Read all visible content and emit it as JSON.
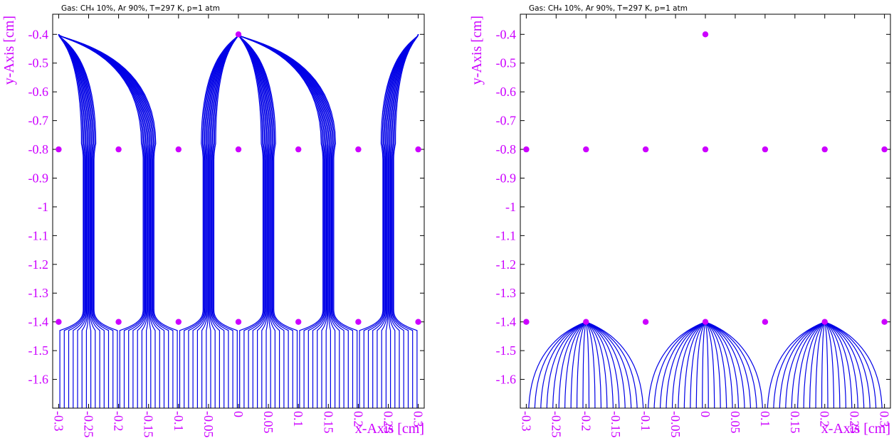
{
  "colors": {
    "field_lines": "#0000e6",
    "wires": "#cc00ff",
    "labels": "#cc00ff",
    "frame": "#000000"
  },
  "chart_data": [
    {
      "type": "line",
      "subtype": "drift-lines",
      "header": "Gas: CH₄ 10%, Ar 90%, T=297 K, p=1 atm",
      "xlabel": "x-Axis [cm]",
      "ylabel": "y-Axis [cm]",
      "xlim": [
        -0.31,
        0.31
      ],
      "ylim": [
        -1.7,
        -0.33
      ],
      "x_ticks": [
        "-0.3",
        "-0.25",
        "-0.2",
        "-0.15",
        "-0.1",
        "-0.05",
        "0",
        "0.05",
        "0.1",
        "0.15",
        "0.2",
        "0.25",
        "0.3"
      ],
      "y_ticks": [
        "-0.4",
        "-0.5",
        "-0.6",
        "-0.7",
        "-0.8",
        "-0.9",
        "-1",
        "-1.1",
        "-1.2",
        "-1.3",
        "-1.4",
        "-1.5",
        "-1.6"
      ],
      "wires": [
        {
          "x": 0,
          "y": -0.4
        },
        {
          "x": -0.3,
          "y": -0.8
        },
        {
          "x": -0.2,
          "y": -0.8
        },
        {
          "x": -0.1,
          "y": -0.8
        },
        {
          "x": 0,
          "y": -0.8
        },
        {
          "x": 0.1,
          "y": -0.8
        },
        {
          "x": 0.2,
          "y": -0.8
        },
        {
          "x": 0.3,
          "y": -0.8
        },
        {
          "x": -0.3,
          "y": -1.4
        },
        {
          "x": -0.2,
          "y": -1.4
        },
        {
          "x": -0.1,
          "y": -1.4
        },
        {
          "x": 0,
          "y": -1.4
        },
        {
          "x": 0.1,
          "y": -1.4
        },
        {
          "x": 0.2,
          "y": -1.4
        },
        {
          "x": 0.3,
          "y": -1.4
        }
      ],
      "drift_pattern": "gate-transparent",
      "anode_targets": [
        -0.3,
        0,
        0.3
      ],
      "bundle_centers": [
        -0.25,
        -0.15,
        -0.05,
        0.05,
        0.15,
        0.25
      ],
      "lines_per_bundle": 14
    },
    {
      "type": "line",
      "subtype": "drift-lines",
      "header": "Gas: CH₄ 10%, Ar 90%, T=297 K, p=1 atm",
      "xlabel": "x-Axis [cm]",
      "ylabel": "y-Axis [cm]",
      "xlim": [
        -0.31,
        0.31
      ],
      "ylim": [
        -1.7,
        -0.33
      ],
      "x_ticks": [
        "-0.3",
        "-0.25",
        "-0.2",
        "-0.15",
        "-0.1",
        "-0.05",
        "0",
        "0.05",
        "0.1",
        "0.15",
        "0.2",
        "0.25",
        "0.3"
      ],
      "y_ticks": [
        "-0.4",
        "-0.5",
        "-0.6",
        "-0.7",
        "-0.8",
        "-0.9",
        "-1",
        "-1.1",
        "-1.2",
        "-1.3",
        "-1.4",
        "-1.5",
        "-1.6"
      ],
      "wires": [
        {
          "x": 0,
          "y": -0.4
        },
        {
          "x": -0.3,
          "y": -0.8
        },
        {
          "x": -0.2,
          "y": -0.8
        },
        {
          "x": -0.1,
          "y": -0.8
        },
        {
          "x": 0,
          "y": -0.8
        },
        {
          "x": 0.1,
          "y": -0.8
        },
        {
          "x": 0.2,
          "y": -0.8
        },
        {
          "x": 0.3,
          "y": -0.8
        },
        {
          "x": -0.3,
          "y": -1.4
        },
        {
          "x": -0.2,
          "y": -1.4
        },
        {
          "x": -0.1,
          "y": -1.4
        },
        {
          "x": 0,
          "y": -1.4
        },
        {
          "x": 0.1,
          "y": -1.4
        },
        {
          "x": 0.2,
          "y": -1.4
        },
        {
          "x": 0.3,
          "y": -1.4
        }
      ],
      "drift_pattern": "gate-closed",
      "collector_wires": [
        -0.2,
        0,
        0.2
      ],
      "fan_half_width": 0.1,
      "lines_per_fan": 20
    }
  ]
}
